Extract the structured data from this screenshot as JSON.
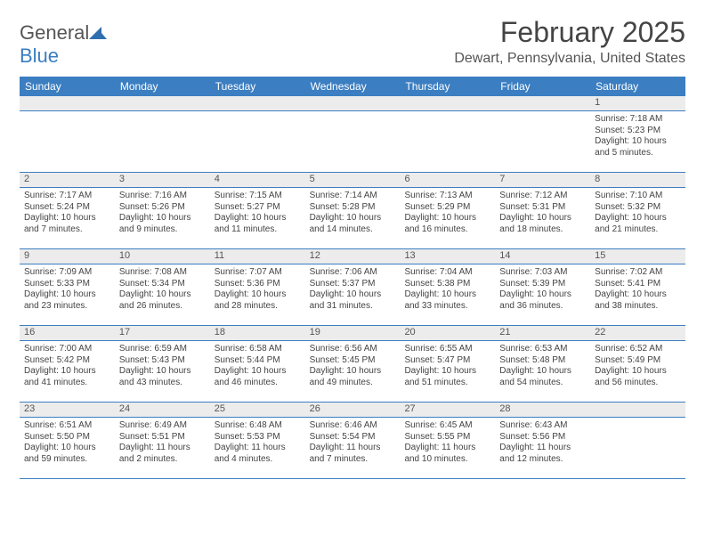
{
  "brand": {
    "name_part1": "General",
    "name_part2": "Blue"
  },
  "title": "February 2025",
  "location": "Dewart, Pennsylvania, United States",
  "colors": {
    "header_bg": "#3b7ec1",
    "header_text": "#ffffff",
    "numrow_bg": "#ececec",
    "border": "#3b7ec1",
    "body_text": "#444444",
    "page_bg": "#ffffff"
  },
  "day_names": [
    "Sunday",
    "Monday",
    "Tuesday",
    "Wednesday",
    "Thursday",
    "Friday",
    "Saturday"
  ],
  "weeks": [
    {
      "days": [
        {
          "num": "",
          "sunrise": "",
          "sunset": "",
          "daylight": ""
        },
        {
          "num": "",
          "sunrise": "",
          "sunset": "",
          "daylight": ""
        },
        {
          "num": "",
          "sunrise": "",
          "sunset": "",
          "daylight": ""
        },
        {
          "num": "",
          "sunrise": "",
          "sunset": "",
          "daylight": ""
        },
        {
          "num": "",
          "sunrise": "",
          "sunset": "",
          "daylight": ""
        },
        {
          "num": "",
          "sunrise": "",
          "sunset": "",
          "daylight": ""
        },
        {
          "num": "1",
          "sunrise": "Sunrise: 7:18 AM",
          "sunset": "Sunset: 5:23 PM",
          "daylight": "Daylight: 10 hours and 5 minutes."
        }
      ]
    },
    {
      "days": [
        {
          "num": "2",
          "sunrise": "Sunrise: 7:17 AM",
          "sunset": "Sunset: 5:24 PM",
          "daylight": "Daylight: 10 hours and 7 minutes."
        },
        {
          "num": "3",
          "sunrise": "Sunrise: 7:16 AM",
          "sunset": "Sunset: 5:26 PM",
          "daylight": "Daylight: 10 hours and 9 minutes."
        },
        {
          "num": "4",
          "sunrise": "Sunrise: 7:15 AM",
          "sunset": "Sunset: 5:27 PM",
          "daylight": "Daylight: 10 hours and 11 minutes."
        },
        {
          "num": "5",
          "sunrise": "Sunrise: 7:14 AM",
          "sunset": "Sunset: 5:28 PM",
          "daylight": "Daylight: 10 hours and 14 minutes."
        },
        {
          "num": "6",
          "sunrise": "Sunrise: 7:13 AM",
          "sunset": "Sunset: 5:29 PM",
          "daylight": "Daylight: 10 hours and 16 minutes."
        },
        {
          "num": "7",
          "sunrise": "Sunrise: 7:12 AM",
          "sunset": "Sunset: 5:31 PM",
          "daylight": "Daylight: 10 hours and 18 minutes."
        },
        {
          "num": "8",
          "sunrise": "Sunrise: 7:10 AM",
          "sunset": "Sunset: 5:32 PM",
          "daylight": "Daylight: 10 hours and 21 minutes."
        }
      ]
    },
    {
      "days": [
        {
          "num": "9",
          "sunrise": "Sunrise: 7:09 AM",
          "sunset": "Sunset: 5:33 PM",
          "daylight": "Daylight: 10 hours and 23 minutes."
        },
        {
          "num": "10",
          "sunrise": "Sunrise: 7:08 AM",
          "sunset": "Sunset: 5:34 PM",
          "daylight": "Daylight: 10 hours and 26 minutes."
        },
        {
          "num": "11",
          "sunrise": "Sunrise: 7:07 AM",
          "sunset": "Sunset: 5:36 PM",
          "daylight": "Daylight: 10 hours and 28 minutes."
        },
        {
          "num": "12",
          "sunrise": "Sunrise: 7:06 AM",
          "sunset": "Sunset: 5:37 PM",
          "daylight": "Daylight: 10 hours and 31 minutes."
        },
        {
          "num": "13",
          "sunrise": "Sunrise: 7:04 AM",
          "sunset": "Sunset: 5:38 PM",
          "daylight": "Daylight: 10 hours and 33 minutes."
        },
        {
          "num": "14",
          "sunrise": "Sunrise: 7:03 AM",
          "sunset": "Sunset: 5:39 PM",
          "daylight": "Daylight: 10 hours and 36 minutes."
        },
        {
          "num": "15",
          "sunrise": "Sunrise: 7:02 AM",
          "sunset": "Sunset: 5:41 PM",
          "daylight": "Daylight: 10 hours and 38 minutes."
        }
      ]
    },
    {
      "days": [
        {
          "num": "16",
          "sunrise": "Sunrise: 7:00 AM",
          "sunset": "Sunset: 5:42 PM",
          "daylight": "Daylight: 10 hours and 41 minutes."
        },
        {
          "num": "17",
          "sunrise": "Sunrise: 6:59 AM",
          "sunset": "Sunset: 5:43 PM",
          "daylight": "Daylight: 10 hours and 43 minutes."
        },
        {
          "num": "18",
          "sunrise": "Sunrise: 6:58 AM",
          "sunset": "Sunset: 5:44 PM",
          "daylight": "Daylight: 10 hours and 46 minutes."
        },
        {
          "num": "19",
          "sunrise": "Sunrise: 6:56 AM",
          "sunset": "Sunset: 5:45 PM",
          "daylight": "Daylight: 10 hours and 49 minutes."
        },
        {
          "num": "20",
          "sunrise": "Sunrise: 6:55 AM",
          "sunset": "Sunset: 5:47 PM",
          "daylight": "Daylight: 10 hours and 51 minutes."
        },
        {
          "num": "21",
          "sunrise": "Sunrise: 6:53 AM",
          "sunset": "Sunset: 5:48 PM",
          "daylight": "Daylight: 10 hours and 54 minutes."
        },
        {
          "num": "22",
          "sunrise": "Sunrise: 6:52 AM",
          "sunset": "Sunset: 5:49 PM",
          "daylight": "Daylight: 10 hours and 56 minutes."
        }
      ]
    },
    {
      "days": [
        {
          "num": "23",
          "sunrise": "Sunrise: 6:51 AM",
          "sunset": "Sunset: 5:50 PM",
          "daylight": "Daylight: 10 hours and 59 minutes."
        },
        {
          "num": "24",
          "sunrise": "Sunrise: 6:49 AM",
          "sunset": "Sunset: 5:51 PM",
          "daylight": "Daylight: 11 hours and 2 minutes."
        },
        {
          "num": "25",
          "sunrise": "Sunrise: 6:48 AM",
          "sunset": "Sunset: 5:53 PM",
          "daylight": "Daylight: 11 hours and 4 minutes."
        },
        {
          "num": "26",
          "sunrise": "Sunrise: 6:46 AM",
          "sunset": "Sunset: 5:54 PM",
          "daylight": "Daylight: 11 hours and 7 minutes."
        },
        {
          "num": "27",
          "sunrise": "Sunrise: 6:45 AM",
          "sunset": "Sunset: 5:55 PM",
          "daylight": "Daylight: 11 hours and 10 minutes."
        },
        {
          "num": "28",
          "sunrise": "Sunrise: 6:43 AM",
          "sunset": "Sunset: 5:56 PM",
          "daylight": "Daylight: 11 hours and 12 minutes."
        },
        {
          "num": "",
          "sunrise": "",
          "sunset": "",
          "daylight": ""
        }
      ]
    }
  ]
}
